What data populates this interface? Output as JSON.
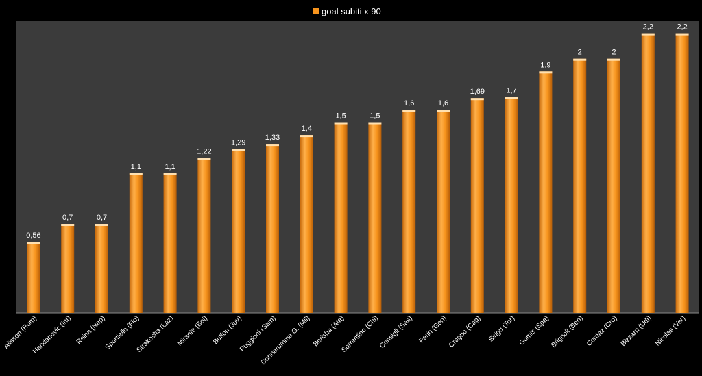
{
  "chart_data": {
    "type": "bar",
    "title": "",
    "xlabel": "",
    "ylabel": "",
    "ylim": [
      0,
      2.3
    ],
    "grid": false,
    "legend": "top-center",
    "series": [
      {
        "name": "goal subiti x 90",
        "color": "#f7941d",
        "values": [
          0.56,
          0.7,
          0.7,
          1.1,
          1.1,
          1.22,
          1.29,
          1.33,
          1.4,
          1.5,
          1.5,
          1.6,
          1.6,
          1.69,
          1.7,
          1.9,
          2,
          2,
          2.2,
          2.2
        ],
        "labels": [
          "0,56",
          "0,7",
          "0,7",
          "1,1",
          "1,1",
          "1,22",
          "1,29",
          "1,33",
          "1,4",
          "1,5",
          "1,5",
          "1,6",
          "1,6",
          "1,69",
          "1,7",
          "1,9",
          "2",
          "2",
          "2,2",
          "2,2"
        ]
      }
    ],
    "categories": [
      "Alisson (Rom)",
      "Handanovic (Int)",
      "Reina (Nap)",
      "Sportiello (Fio)",
      "Strakosha (Laz)",
      "Mirante (Bol)",
      "Buffon (Juv)",
      "Puggioni (Sam)",
      "Donnarumma G. (Mil)",
      "Berisha (Ata)",
      "Sorrentino (Chi)",
      "Consigli (Sas)",
      "Perin (Gen)",
      "Cragno (Cag)",
      "Sirigu (Tor)",
      "Gomis (Spa)",
      "Brignoli (Ben)",
      "Cordaz (Cro)",
      "Bizzarri (Udi)",
      "Nicolas (Ver)"
    ]
  },
  "colors": {
    "background": "#000000",
    "plot_area": "#3b3b3b",
    "bar": "#f7941d"
  }
}
